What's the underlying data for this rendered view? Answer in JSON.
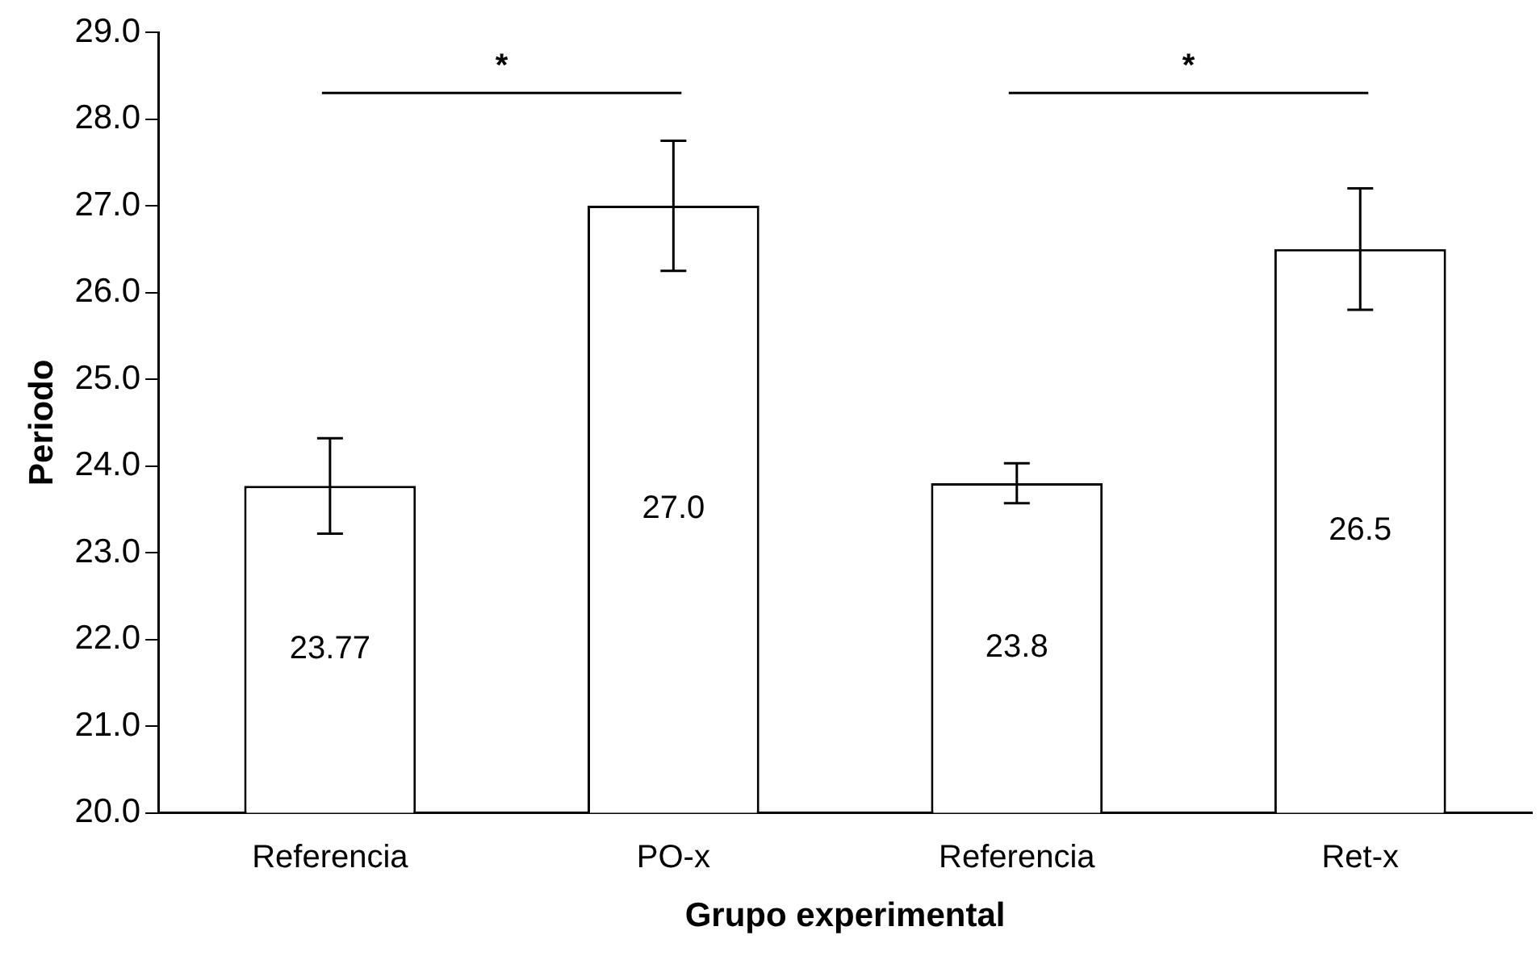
{
  "chart_data": {
    "type": "bar",
    "xlabel": "Grupo experimental",
    "ylabel": "Periodo",
    "categories": [
      "Referencia",
      "PO-x",
      "Referencia",
      "Ret-x"
    ],
    "values": [
      23.77,
      27.0,
      23.8,
      26.5
    ],
    "errors": [
      0.55,
      0.75,
      0.23,
      0.7
    ],
    "value_labels": [
      "23.77",
      "27.0",
      "23.8",
      "26.5"
    ],
    "color": "#ffffff",
    "ylim": [
      20,
      29
    ],
    "yticks": [
      {
        "value": 20,
        "label": "20.0"
      },
      {
        "value": 21,
        "label": "21.0"
      },
      {
        "value": 22,
        "label": "22.0"
      },
      {
        "value": 23,
        "label": "23.0"
      },
      {
        "value": 24,
        "label": "24.0"
      },
      {
        "value": 25,
        "label": "25.0"
      },
      {
        "value": 26,
        "label": "26.0"
      },
      {
        "value": 27,
        "label": "27.0"
      },
      {
        "value": 28,
        "label": "28.0"
      },
      {
        "value": 29,
        "label": "29.0"
      }
    ],
    "annotations": [
      "*",
      "*"
    ],
    "grid": false,
    "legend": false
  }
}
